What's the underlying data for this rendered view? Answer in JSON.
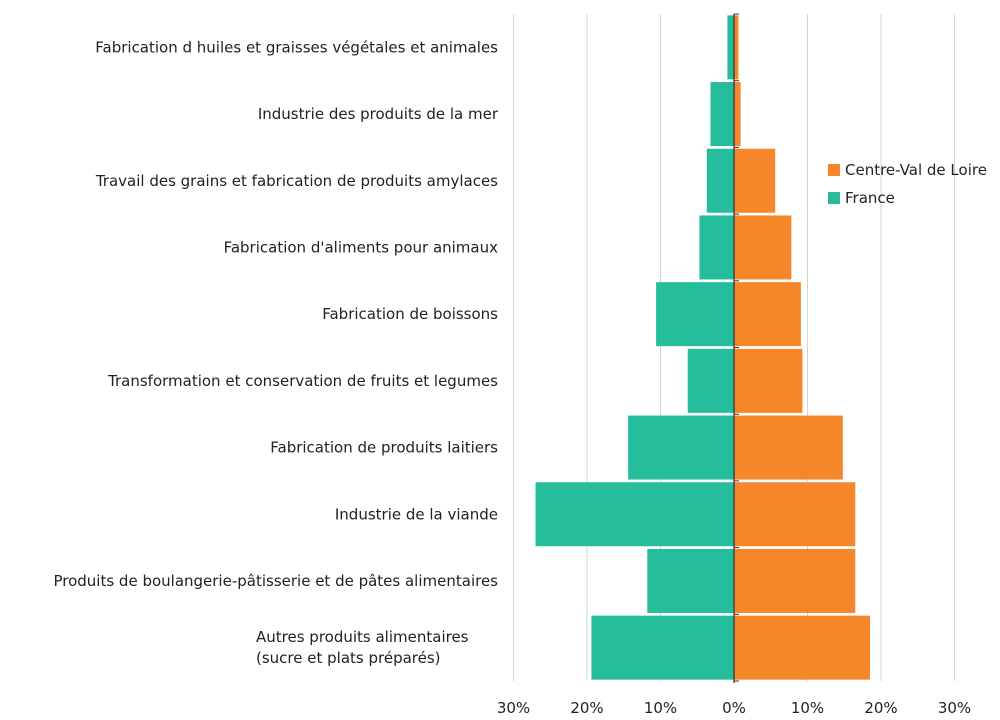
{
  "chart_data": {
    "type": "bar",
    "orientation": "horizontal-diverging",
    "categories": [
      [
        "Fabrication d huiles et graisses végétales et animales"
      ],
      [
        "Industrie des produits de la mer"
      ],
      [
        "Travail des grains et fabrication de produits amylaces"
      ],
      [
        "Fabrication d'aliments pour animaux"
      ],
      [
        "Fabrication de boissons"
      ],
      [
        "Transformation et conservation de fruits et legumes"
      ],
      [
        "Fabrication de produits laitiers"
      ],
      [
        "Industrie de la viande"
      ],
      [
        "Produits de boulangerie-pâtisserie et de pâtes alimentaires"
      ],
      [
        "Autres produits alimentaires",
        "(sucre et plats préparés)"
      ]
    ],
    "series": [
      {
        "name": "Centre-Val de Loire",
        "color": "#f5862a",
        "side": "right",
        "values": [
          0.6,
          0.9,
          5.6,
          7.8,
          9.1,
          9.3,
          14.8,
          16.5,
          16.5,
          18.5
        ]
      },
      {
        "name": "France",
        "color": "#26bd9c",
        "side": "left",
        "values": [
          0.9,
          3.2,
          3.7,
          4.7,
          10.6,
          6.3,
          14.4,
          27.0,
          11.8,
          19.4
        ]
      }
    ],
    "xlim": [
      -30,
      30
    ],
    "xticks": [
      -30,
      -20,
      -10,
      0,
      10,
      20,
      30
    ],
    "xtick_labels": [
      "30%",
      "20%",
      "10%",
      "0%",
      "10%",
      "20%",
      "30%"
    ],
    "grid": "vertical",
    "legend_position": "right",
    "legend_order": [
      "Centre-Val de Loire",
      "France"
    ]
  }
}
